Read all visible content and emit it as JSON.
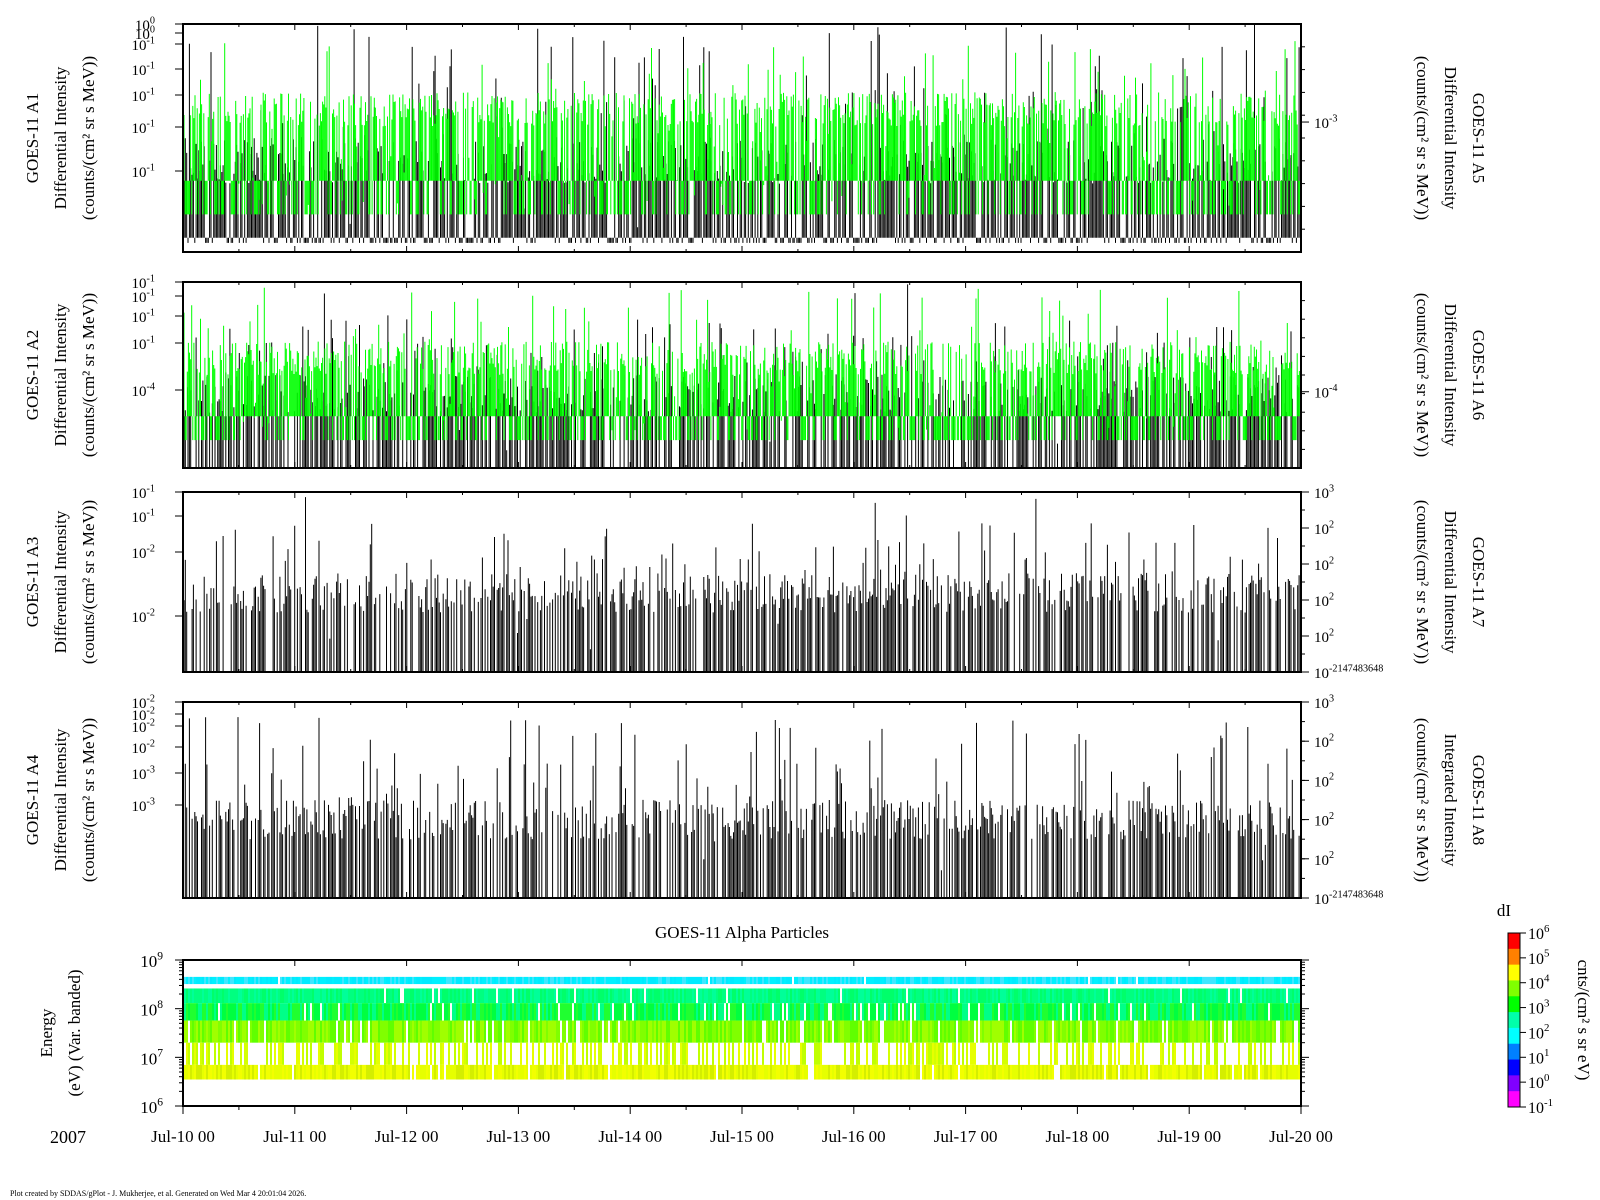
{
  "footer": "Plot created by SDDAS/gPlot - J. Mukherjee, et al.  Generated on Wed Mar 4 20:01:04 2026.",
  "year": "2007",
  "x_ticks": [
    "Jul-10 00",
    "Jul-11 00",
    "Jul-12 00",
    "Jul-13 00",
    "Jul-14 00",
    "Jul-15 00",
    "Jul-16 00",
    "Jul-17 00",
    "Jul-18 00",
    "Jul-19 00",
    "Jul-20 00"
  ],
  "colors": {
    "green": "#00ff00",
    "black": "#000000",
    "cyan": "#00ffff"
  },
  "spectrogram_title": "GOES-11 Alpha Particles",
  "chart_data": [
    {
      "type": "line",
      "left_label": [
        "GOES-11 A1",
        "Differential Intensity",
        "(counts/(cm² sr s MeV))"
      ],
      "right_label": [
        "GOES-11 A5",
        "Differential Intensity",
        "(counts/(cm² sr s MeV))"
      ],
      "left_ticks": [
        [
          "10",
          "0"
        ],
        [
          "10",
          "0"
        ],
        [
          "10",
          "-1"
        ],
        [
          "10",
          "-1"
        ],
        [
          "10",
          "-1"
        ],
        [
          "10",
          "-1"
        ],
        [
          "10",
          "-1"
        ]
      ],
      "right_ticks": [
        [
          "10",
          "-3"
        ]
      ],
      "series": [
        {
          "color": "black",
          "base": 0.08,
          "typical": [
            0.3,
            0.5
          ],
          "spikes": [
            [
              0.5,
              1.0
            ],
            [
              0.1,
              0.83
            ]
          ]
        },
        {
          "color": "green",
          "base": 0.33,
          "typical": [
            0.55,
            0.7
          ],
          "spikes": [
            [
              0.2,
              0.93
            ]
          ]
        }
      ]
    },
    {
      "type": "line",
      "left_label": [
        "GOES-11 A2",
        "Differential Intensity",
        "(counts/(cm² sr s MeV))"
      ],
      "right_label": [
        "GOES-11 A6",
        "Differential Intensity",
        "(counts/(cm² sr s MeV))"
      ],
      "left_ticks": [
        [
          "10",
          "-1"
        ],
        [
          "10",
          "-1"
        ],
        [
          "10",
          "-1"
        ],
        [
          "10",
          "-1"
        ],
        [
          "10",
          "-4"
        ]
      ],
      "right_ticks": [
        [
          "10",
          "-4"
        ]
      ],
      "series": [
        {
          "color": "black",
          "base": 0.0,
          "typical": [
            0.3,
            0.5
          ],
          "spikes": [
            [
              0.5,
              0.8
            ],
            [
              0.05,
              1.0
            ]
          ]
        },
        {
          "color": "green",
          "base": 0.3,
          "typical": [
            0.5,
            0.68
          ],
          "spikes": [
            [
              0.2,
              0.97
            ]
          ]
        }
      ]
    },
    {
      "type": "line",
      "left_label": [
        "GOES-11 A3",
        "Differential Intensity",
        "(counts/(cm² sr s MeV))"
      ],
      "right_label": [
        "GOES-11 A7",
        "Differential Intensity",
        "(counts/(cm² sr s MeV))"
      ],
      "left_ticks": [
        [
          "10",
          "-1"
        ],
        [
          "10",
          "-1"
        ],
        [
          "10",
          "-2"
        ],
        [
          "10",
          "-2"
        ]
      ],
      "right_ticks": [
        [
          "10",
          "3"
        ],
        [
          "10",
          "2"
        ],
        [
          "10",
          "2"
        ],
        [
          "10",
          "2"
        ],
        [
          "10",
          "2"
        ],
        [
          "10",
          "-2147483648"
        ]
      ],
      "series": [
        {
          "color": "black",
          "base": 0.0,
          "typical": [
            0.33,
            0.55
          ],
          "spikes": [
            [
              0.55,
              0.83
            ],
            [
              0.1,
              1.0
            ]
          ]
        }
      ]
    },
    {
      "type": "line",
      "left_label": [
        "GOES-11 A4",
        "Differential Intensity",
        "(counts/(cm² sr s MeV))"
      ],
      "right_label": [
        "GOES-11 A8",
        "Integrated Intensity",
        "(counts/(cm² sr s MeV))"
      ],
      "left_ticks": [
        [
          "10",
          "-2"
        ],
        [
          "10",
          "-2"
        ],
        [
          "10",
          "-2"
        ],
        [
          "10",
          "-2"
        ],
        [
          "10",
          "-3"
        ],
        [
          "10",
          "-3"
        ]
      ],
      "right_ticks": [
        [
          "10",
          "3"
        ],
        [
          "10",
          "2"
        ],
        [
          "10",
          "2"
        ],
        [
          "10",
          "2"
        ],
        [
          "10",
          "2"
        ],
        [
          "10",
          "-2147483648"
        ]
      ],
      "series": [
        {
          "color": "black",
          "base": 0.0,
          "typical": [
            0.3,
            0.5
          ],
          "spikes": [
            [
              0.5,
              0.93
            ],
            [
              0.1,
              1.0
            ]
          ]
        }
      ]
    },
    {
      "type": "heatmap",
      "title": "GOES-11 Alpha Particles",
      "ylabel": [
        "Energy",
        "(eV) (Var. banded)"
      ],
      "y_ticks": [
        [
          "10",
          "9"
        ],
        [
          "10",
          "8"
        ],
        [
          "10",
          "7"
        ],
        [
          "10",
          "6"
        ]
      ],
      "ylim": [
        1000000,
        1000000000
      ],
      "bands": [
        {
          "from": 320000000,
          "to": 450000000,
          "colors": [
            "#00eaff",
            "#00f0ff",
            "#3fe6ff"
          ],
          "fill": 0.99
        },
        {
          "from": 130000000,
          "to": 260000000,
          "colors": [
            "#00ff80",
            "#00ff99",
            "#00ff6a"
          ],
          "fill": 0.96
        },
        {
          "from": 57000000,
          "to": 130000000,
          "colors": [
            "#00ff40",
            "#20ff30",
            "#00ff88"
          ],
          "fill": 0.92
        },
        {
          "from": 20000000,
          "to": 57000000,
          "colors": [
            "#80ff00",
            "#60ff00",
            "#a0ff00"
          ],
          "fill": 0.9
        },
        {
          "from": 7000000,
          "to": 20000000,
          "colors": [
            "#c0ff00",
            "#e6ff00",
            "#d4ff00"
          ],
          "fill": 0.4
        },
        {
          "from": 3500000,
          "to": 7000000,
          "colors": [
            "#e6ff00",
            "#f2ff00",
            "#d4ee00"
          ],
          "fill": 0.95
        }
      ],
      "colorbar": {
        "title": "dI",
        "label": "cnts/(cm² s sr eV)",
        "ticks": [
          [
            "10",
            "6"
          ],
          [
            "10",
            "5"
          ],
          [
            "10",
            "4"
          ],
          [
            "10",
            "3"
          ],
          [
            "10",
            "2"
          ],
          [
            "10",
            "1"
          ],
          [
            "10",
            "0"
          ],
          [
            "10",
            "-1"
          ]
        ]
      }
    }
  ]
}
